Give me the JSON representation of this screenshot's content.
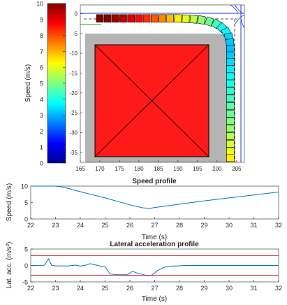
{
  "chart_data": [
    {
      "type": "colorbar",
      "ylabel": "Speed (m/s)",
      "ylim": [
        0,
        10
      ],
      "ticks": [
        0,
        1,
        2,
        3,
        4,
        5,
        6,
        7,
        8,
        9,
        10
      ],
      "colormap": "jet"
    },
    {
      "type": "scatter",
      "title": "",
      "xlim": [
        165,
        207
      ],
      "ylim": [
        -37.5,
        2.2
      ],
      "xticks": [
        165,
        170,
        175,
        180,
        185,
        190,
        195,
        200,
        205
      ],
      "yticks": [
        0,
        -5,
        -10,
        -15,
        -20,
        -25,
        -30,
        -35
      ],
      "obstacle_box": {
        "x": [
          168.5,
          197.5
        ],
        "y": [
          -36.5,
          -6.8
        ],
        "color": "#ff1a1a"
      },
      "road_border": {
        "x": [
          166.5,
          200.5
        ],
        "y": [
          -37.5,
          -2.5
        ],
        "color": "#b4b4b4"
      },
      "trajectory": {
        "x": [
          170,
          172,
          174,
          176,
          178,
          180,
          182,
          184,
          186,
          188,
          190,
          192,
          194,
          196,
          198,
          199.8,
          201.2,
          202.3,
          203,
          203.3,
          203.4,
          203.4,
          203.4,
          203.4,
          203.4,
          203.4,
          203.4,
          203.4,
          203.4,
          203.4,
          203.4,
          203.4,
          203.4,
          203.4,
          203.4,
          203.4
        ],
        "y": [
          -1.2,
          -1.2,
          -1.2,
          -1.2,
          -1.2,
          -1.2,
          -1.2,
          -1.2,
          -1.2,
          -1.2,
          -1.2,
          -1.3,
          -1.4,
          -1.6,
          -2.0,
          -2.6,
          -3.5,
          -4.6,
          -5.9,
          -7.3,
          -8.8,
          -10.5,
          -12.2,
          -14.0,
          -15.8,
          -17.6,
          -19.5,
          -21.4,
          -23.3,
          -25.2,
          -27.1,
          -29.0,
          -30.9,
          -32.8,
          -34.7,
          -36.4
        ],
        "speed": [
          10,
          9.9,
          9.7,
          9.4,
          9.1,
          8.7,
          8.3,
          7.9,
          7.4,
          6.9,
          6.4,
          6.0,
          5.6,
          5.2,
          4.8,
          4.4,
          4.0,
          3.7,
          3.4,
          3.2,
          3.1,
          3.2,
          3.4,
          3.6,
          3.8,
          4.0,
          4.2,
          4.4,
          4.6,
          4.8,
          5.0,
          5.2,
          5.5,
          5.8,
          6.1,
          6.4
        ]
      }
    },
    {
      "type": "line",
      "title": "Speed profile",
      "xlabel": "Time (s)",
      "ylabel": "Speed (m/s)",
      "xlim": [
        22,
        32
      ],
      "ylim": [
        0,
        10
      ],
      "xticks": [
        22,
        23,
        24,
        25,
        26,
        27,
        28,
        29,
        30,
        31,
        32
      ],
      "yticks": [
        0,
        5,
        10
      ],
      "series": [
        {
          "x": [
            22,
            23,
            23.3,
            24,
            25,
            26,
            26.5,
            26.8,
            27,
            28,
            29,
            30,
            31,
            32
          ],
          "y": [
            10,
            10,
            9.7,
            8.3,
            6.4,
            4.3,
            3.4,
            3.2,
            3.5,
            4.5,
            5.5,
            6.4,
            7.3,
            8.2
          ],
          "color": "#0072bd"
        }
      ]
    },
    {
      "type": "line",
      "title": "Lateral acceleration profile",
      "xlabel": "Time (s)",
      "ylabel": "Lat. acc. (m/s²)",
      "xlim": [
        22,
        32
      ],
      "ylim": [
        -5,
        5
      ],
      "xticks": [
        22,
        23,
        24,
        25,
        26,
        27,
        28,
        29,
        30,
        31,
        32
      ],
      "yticks": [
        -5,
        0,
        5
      ],
      "series": [
        {
          "x": [
            22,
            22.55,
            22.72,
            22.85,
            23.0,
            23.5,
            23.8,
            24.0,
            24.2,
            24.4,
            24.6,
            24.8,
            25.0,
            25.2,
            25.5,
            25.7,
            25.9,
            26.1,
            26.3,
            26.5,
            26.7,
            26.9,
            27.1,
            27.4,
            27.7,
            28.0,
            28.2,
            28.5,
            29.0,
            30.0,
            31.0,
            32.0
          ],
          "y": [
            0,
            0.05,
            2.0,
            0,
            -0.1,
            -0.15,
            0.1,
            -0.2,
            0.05,
            0.55,
            0.2,
            -0.2,
            -0.4,
            -2.6,
            -2.8,
            -2.8,
            -2.8,
            -1.8,
            -2.3,
            -2.7,
            -3.1,
            -2.9,
            -1.6,
            -0.5,
            -0.2,
            -0.1,
            0,
            0,
            0,
            0,
            0,
            0
          ],
          "color": "#0072bd"
        },
        {
          "x": [
            22,
            32
          ],
          "y": [
            3,
            3
          ],
          "color": "#d62728"
        },
        {
          "x": [
            22,
            32
          ],
          "y": [
            -3,
            -3
          ],
          "color": "#d62728"
        }
      ]
    }
  ]
}
